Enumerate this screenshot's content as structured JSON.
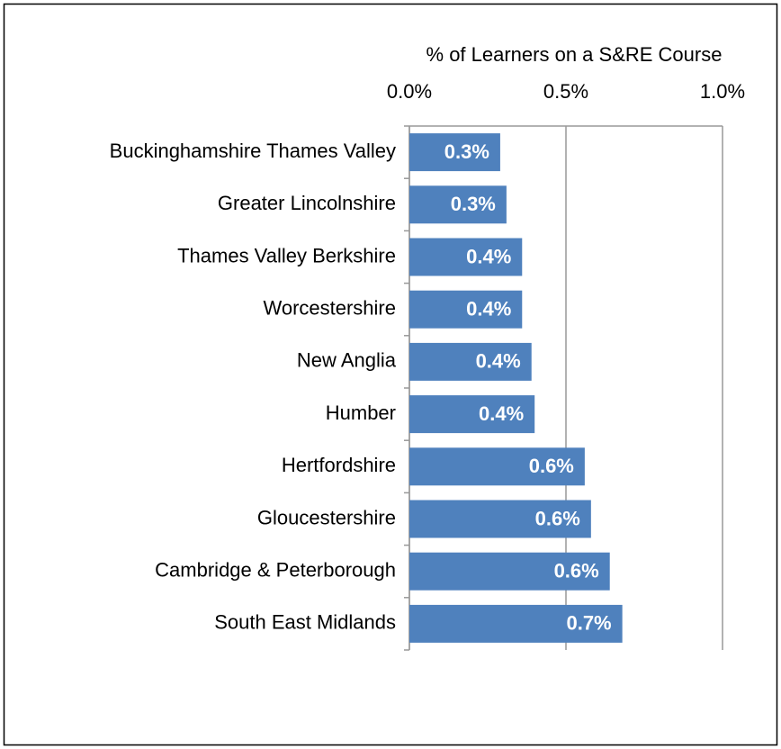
{
  "chart_data": {
    "type": "bar",
    "orientation": "horizontal",
    "x_axis_label": "% of Learners on a S&RE Course",
    "categories": [
      "Buckinghamshire Thames Valley",
      "Greater Lincolnshire",
      "Thames Valley Berkshire",
      "Worcestershire",
      "New Anglia",
      "Humber",
      "Hertfordshire",
      "Gloucestershire",
      "Cambridge & Peterborough",
      "South East Midlands"
    ],
    "values": [
      0.29,
      0.31,
      0.36,
      0.36,
      0.39,
      0.4,
      0.56,
      0.58,
      0.64,
      0.68
    ],
    "value_labels": [
      "0.3%",
      "0.3%",
      "0.4%",
      "0.4%",
      "0.4%",
      "0.4%",
      "0.6%",
      "0.6%",
      "0.6%",
      "0.7%"
    ],
    "color": "#4f81bd",
    "xlim": [
      0,
      1
    ],
    "xticks": [
      {
        "value": 0,
        "label": "0.0%"
      },
      {
        "value": 0.5,
        "label": "0.5%"
      },
      {
        "value": 1,
        "label": "1.0%"
      }
    ],
    "grid": true
  }
}
